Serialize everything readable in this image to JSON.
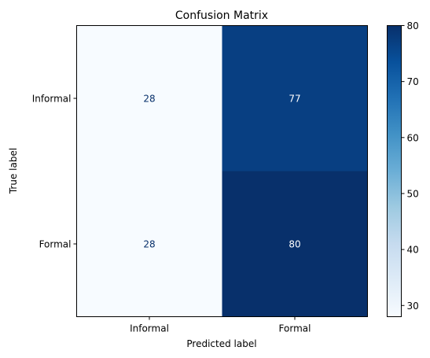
{
  "chart_data": {
    "type": "heatmap",
    "title": "Confusion Matrix",
    "xlabel": "Predicted label",
    "ylabel": "True label",
    "x_categories": [
      "Informal",
      "Formal"
    ],
    "y_categories": [
      "Informal",
      "Formal"
    ],
    "values": [
      [
        28,
        77
      ],
      [
        28,
        80
      ]
    ],
    "colormap": "Blues",
    "colorbar": {
      "min": 28,
      "max": 80,
      "ticks": [
        30,
        40,
        50,
        60,
        70,
        80
      ]
    },
    "grid": false
  }
}
